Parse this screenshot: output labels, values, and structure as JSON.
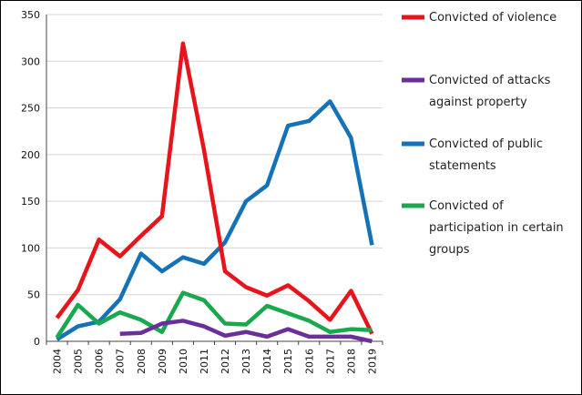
{
  "chart_data": {
    "type": "line",
    "title": "",
    "xlabel": "",
    "ylabel": "",
    "ylim": [
      0,
      350
    ],
    "yticks": [
      0,
      50,
      100,
      150,
      200,
      250,
      300,
      350
    ],
    "grid": "horizontal",
    "legend_position": "right",
    "categories": [
      "2004",
      "2005",
      "2006",
      "2007",
      "2008",
      "2009",
      "2010",
      "2011",
      "2012",
      "2013",
      "2014",
      "2015",
      "2016",
      "2017",
      "2018",
      "2019"
    ],
    "series": [
      {
        "name": "Convicted of violence",
        "color": "#e8141b",
        "legend_lines": [
          "Convicted of violence"
        ],
        "values": [
          25,
          55,
          109,
          91,
          113,
          134,
          319,
          205,
          75,
          58,
          49,
          60,
          43,
          23,
          54,
          8
        ]
      },
      {
        "name": "Convicted of attacks against property",
        "color": "#6a2f99",
        "legend_lines": [
          "Convicted of attacks",
          "against property"
        ],
        "values": [
          null,
          null,
          null,
          8,
          9,
          19,
          22,
          16,
          6,
          10,
          5,
          13,
          5,
          5,
          5,
          0
        ]
      },
      {
        "name": "Convicted of public statements",
        "color": "#1572b7",
        "legend_lines": [
          "Convicted of public",
          "statements"
        ],
        "values": [
          2,
          16,
          21,
          45,
          94,
          75,
          90,
          83,
          106,
          150,
          167,
          231,
          236,
          257,
          218,
          103
        ]
      },
      {
        "name": "Convicted of participation in certain groups",
        "color": "#1aa84f",
        "legend_lines": [
          "Convicted of",
          "participation in certain",
          "groups"
        ],
        "values": [
          4,
          39,
          19,
          31,
          23,
          10,
          52,
          44,
          19,
          18,
          38,
          30,
          22,
          10,
          13,
          12
        ]
      }
    ]
  }
}
